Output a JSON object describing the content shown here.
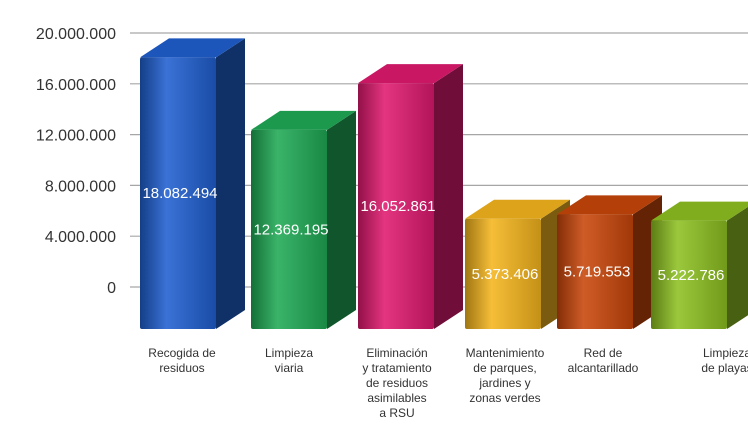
{
  "chart_data": {
    "type": "bar",
    "categories": [
      [
        "Recogida de",
        "residuos"
      ],
      [
        "Limpieza",
        "viaria"
      ],
      [
        "Eliminación",
        "y tratamiento",
        "de residuos",
        "asimilables",
        "a RSU"
      ],
      [
        "Mantenimiento",
        "de parques,",
        "jardines y",
        "zonas verdes"
      ],
      [
        "Red de",
        "alcantarillado"
      ],
      [
        "Limpieza",
        "de playas"
      ]
    ],
    "values": [
      18082494,
      12369195,
      16052861,
      5373406,
      5719553,
      5222786
    ],
    "data_labels": [
      "18.082.494",
      "12.369.195",
      "16.052.861",
      "5.373.406",
      "5.719.553",
      "5.222.786"
    ],
    "y_ticks": [
      0,
      4000000,
      8000000,
      12000000,
      16000000,
      20000000
    ],
    "y_tick_labels": [
      "0",
      "4.000.000",
      "8.000.000",
      "12.000.000",
      "16.000.000",
      "20.000.000"
    ],
    "ylim": [
      0,
      20000000
    ],
    "grid": true,
    "legend": "none",
    "bar_colors": [
      "#1f5fd0",
      "#1faa55",
      "#e0196f",
      "#f5b51d",
      "#c9460a",
      "#8dc021"
    ],
    "title": "",
    "xlabel": "",
    "ylabel": ""
  }
}
